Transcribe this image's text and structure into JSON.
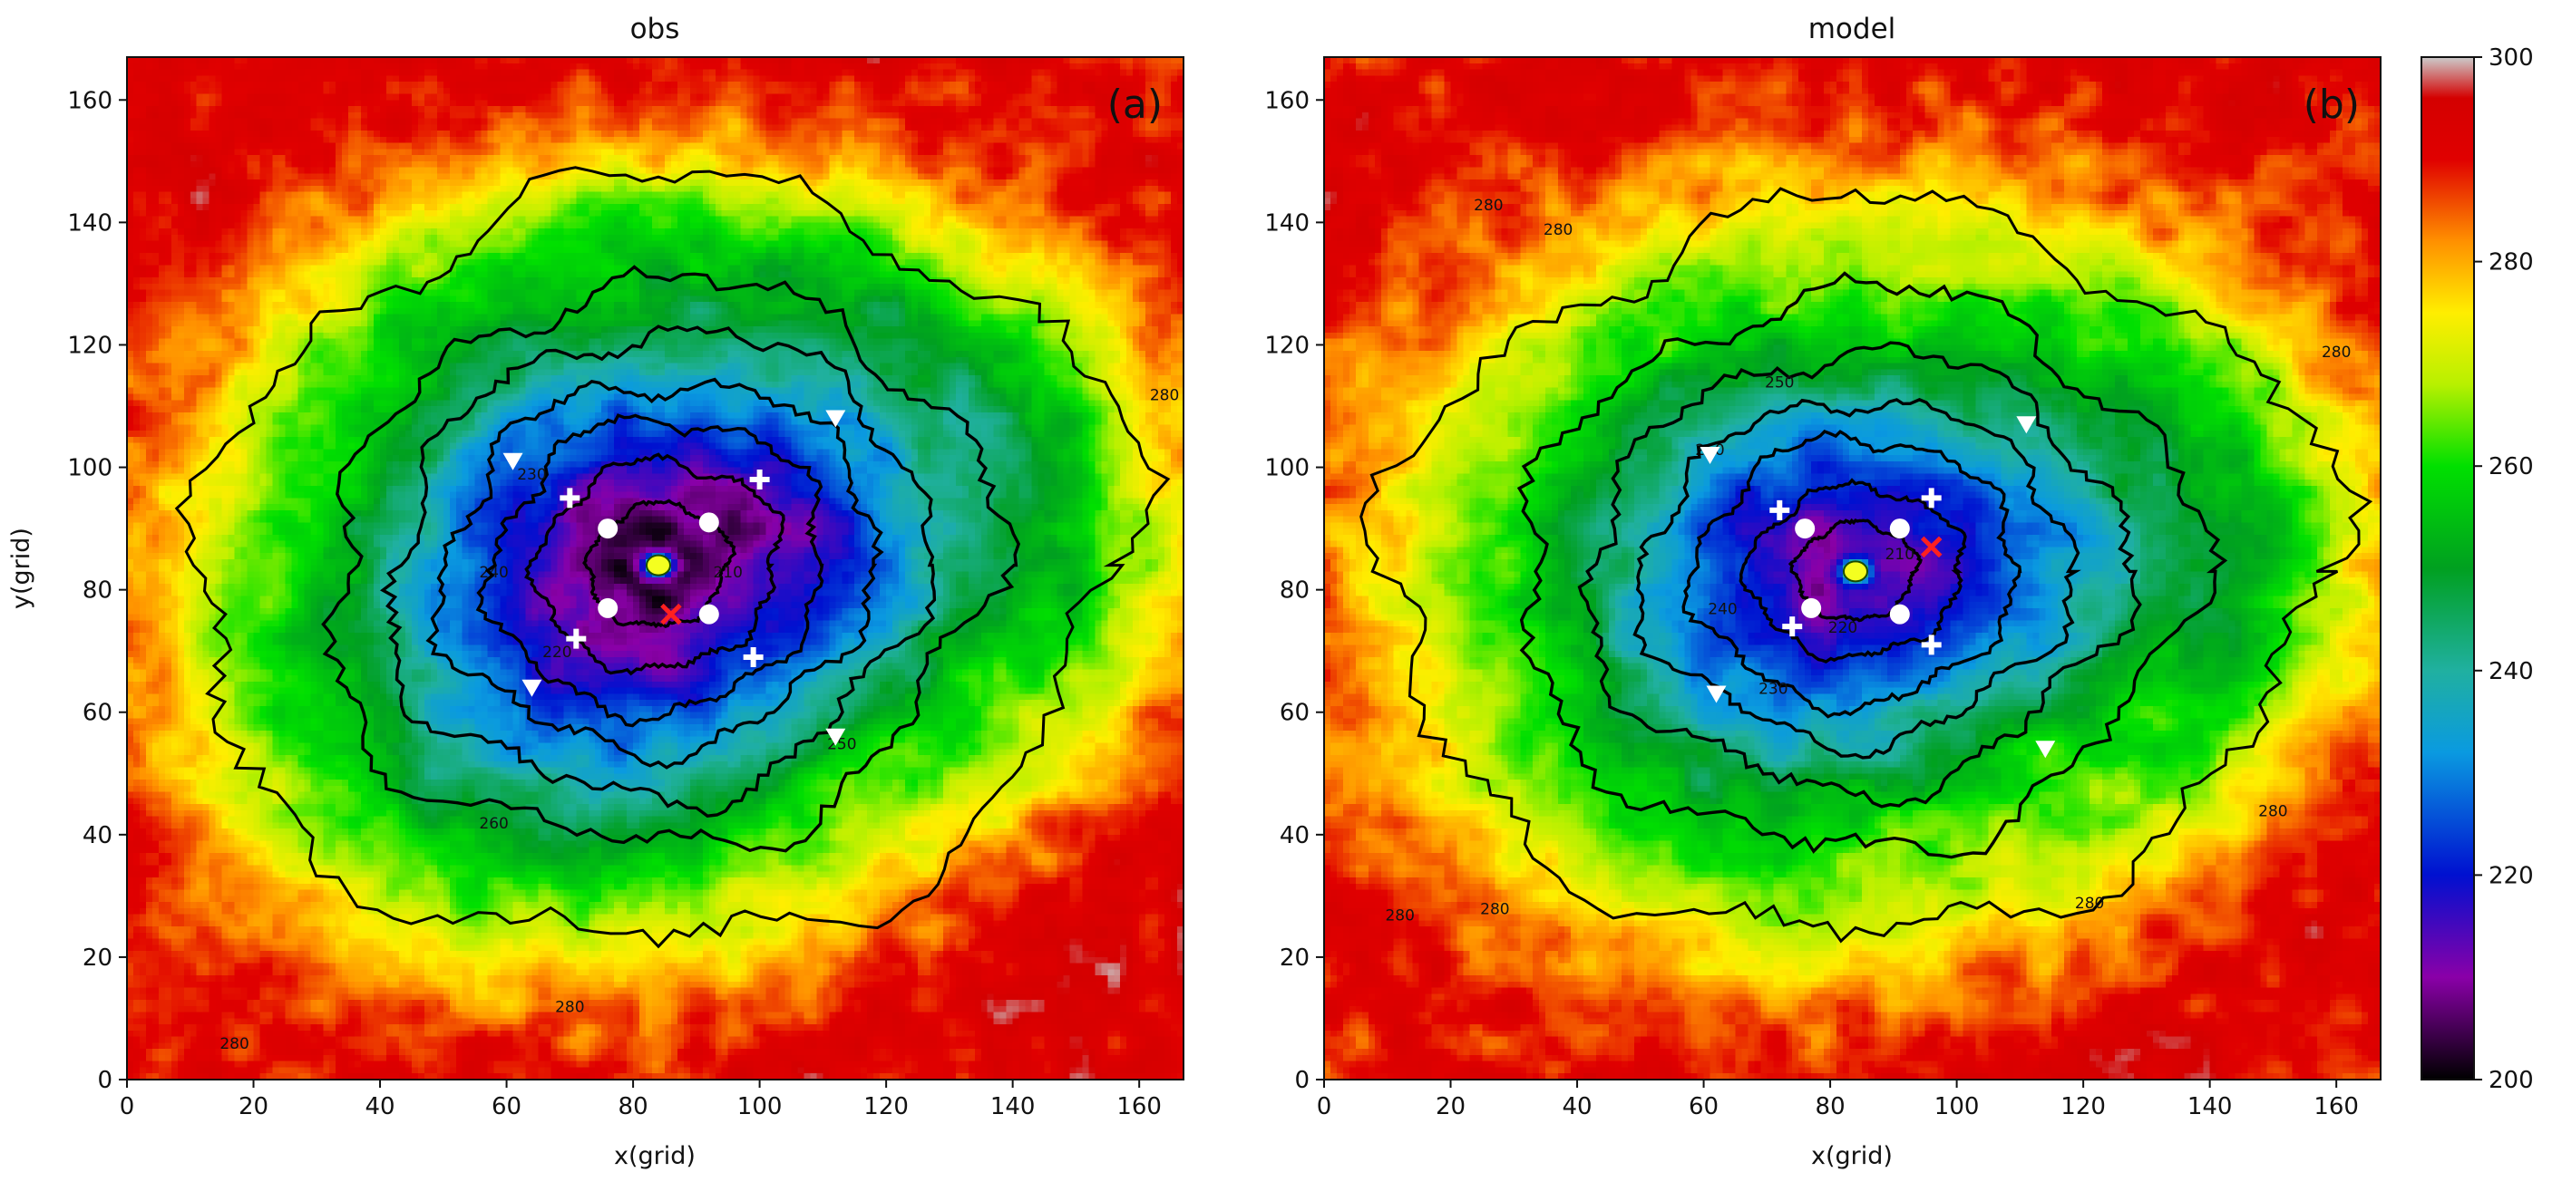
{
  "chart_data": [
    {
      "type": "heatmap",
      "title": "obs",
      "panel_label": "(a)",
      "xlabel": "x(grid)",
      "ylabel": "y(grid)",
      "xlim": [
        0,
        167
      ],
      "ylim": [
        0,
        167
      ],
      "xticks": [
        0,
        20,
        40,
        60,
        80,
        100,
        120,
        140,
        160
      ],
      "yticks": [
        0,
        20,
        40,
        60,
        80,
        100,
        120,
        140,
        160
      ],
      "field": {
        "center": [
          84,
          84
        ],
        "core_value": 205,
        "ambient_value": 288,
        "scale_radius": 48,
        "elong_x": 1.12,
        "elong_y": 0.92
      },
      "contour_levels": [
        {
          "value": 280,
          "rx": 73,
          "ry": 62,
          "labels": [
            [
              17,
              5
            ],
            [
              70,
              11
            ],
            [
              164,
              111
            ]
          ]
        },
        {
          "value": 260,
          "rx": 52,
          "ry": 46,
          "labels": [
            [
              58,
              41
            ]
          ]
        },
        {
          "value": 250,
          "rx": 42,
          "ry": 38,
          "labels": [
            [
              113,
              54
            ]
          ]
        },
        {
          "value": 240,
          "rx": 34,
          "ry": 30,
          "labels": [
            [
              58,
              82
            ]
          ]
        },
        {
          "value": 230,
          "rx": 26,
          "ry": 24,
          "labels": [
            [
              64,
              98
            ]
          ]
        },
        {
          "value": 220,
          "rx": 19,
          "ry": 17,
          "labels": [
            [
              68,
              69
            ]
          ]
        },
        {
          "value": 210,
          "rx": 11,
          "ry": 10,
          "labels": [
            [
              95,
              82
            ]
          ]
        }
      ],
      "markers": {
        "triangle": [
          [
            61,
            101
          ],
          [
            112,
            108
          ],
          [
            64,
            64
          ],
          [
            112,
            56
          ]
        ],
        "plus": [
          [
            70,
            95
          ],
          [
            100,
            98
          ],
          [
            71,
            72
          ],
          [
            99,
            69
          ]
        ],
        "circle": [
          [
            76,
            90
          ],
          [
            92,
            91
          ],
          [
            76,
            77
          ],
          [
            92,
            76
          ]
        ],
        "x": [
          [
            86,
            76
          ]
        ],
        "center": [
          [
            84,
            84
          ]
        ]
      }
    },
    {
      "type": "heatmap",
      "title": "model",
      "panel_label": "(b)",
      "xlabel": "x(grid)",
      "ylabel": "",
      "xlim": [
        0,
        167
      ],
      "ylim": [
        0,
        167
      ],
      "xticks": [
        0,
        20,
        40,
        60,
        80,
        100,
        120,
        140,
        160
      ],
      "yticks": [
        0,
        20,
        40,
        60,
        80,
        100,
        120,
        140,
        160
      ],
      "field": {
        "center": [
          84,
          83
        ],
        "core_value": 212,
        "ambient_value": 286,
        "scale_radius": 44,
        "elong_x": 1.1,
        "elong_y": 0.95
      },
      "contour_levels": [
        {
          "value": 280,
          "rx": 70,
          "ry": 60,
          "labels": [
            [
              37,
              138
            ],
            [
              26,
              142
            ],
            [
              160,
              118
            ],
            [
              150,
              43
            ],
            [
              121,
              28
            ],
            [
              27,
              27
            ],
            [
              12,
              26
            ]
          ]
        },
        {
          "value": 260,
          "rx": 50,
          "ry": 46,
          "labels": [
            [
              61,
              102
            ]
          ]
        },
        {
          "value": 250,
          "rx": 40,
          "ry": 36,
          "labels": [
            [
              72,
              113
            ]
          ]
        },
        {
          "value": 240,
          "rx": 32,
          "ry": 28,
          "labels": [
            [
              63,
              76
            ]
          ]
        },
        {
          "value": 230,
          "rx": 24,
          "ry": 22,
          "labels": [
            [
              71,
              63
            ]
          ]
        },
        {
          "value": 220,
          "rx": 16,
          "ry": 14,
          "labels": [
            [
              82,
              73
            ]
          ]
        },
        {
          "value": 210,
          "rx": 9,
          "ry": 8,
          "labels": [
            [
              91,
              85
            ]
          ]
        }
      ],
      "markers": {
        "triangle": [
          [
            61,
            102
          ],
          [
            111,
            107
          ],
          [
            62,
            63
          ],
          [
            114,
            54
          ]
        ],
        "plus": [
          [
            72,
            93
          ],
          [
            96,
            95
          ],
          [
            74,
            74
          ],
          [
            96,
            71
          ]
        ],
        "circle": [
          [
            76,
            90
          ],
          [
            91,
            90
          ],
          [
            77,
            77
          ],
          [
            91,
            76
          ]
        ],
        "x": [
          [
            96,
            87
          ]
        ],
        "center": [
          [
            84,
            83
          ]
        ]
      }
    }
  ],
  "colorbar": {
    "min": 200,
    "max": 300,
    "ticks": [
      200,
      220,
      240,
      260,
      280,
      300
    ],
    "stops": [
      {
        "v": 200,
        "color": "#000000"
      },
      {
        "v": 210,
        "color": "#8a00a8"
      },
      {
        "v": 220,
        "color": "#0010d0"
      },
      {
        "v": 232,
        "color": "#0a9ae0"
      },
      {
        "v": 240,
        "color": "#20b0a0"
      },
      {
        "v": 250,
        "color": "#00a020"
      },
      {
        "v": 260,
        "color": "#00e000"
      },
      {
        "v": 268,
        "color": "#b8f000"
      },
      {
        "v": 275,
        "color": "#ffee00"
      },
      {
        "v": 282,
        "color": "#ff9000"
      },
      {
        "v": 290,
        "color": "#e00000"
      },
      {
        "v": 296,
        "color": "#d40000"
      },
      {
        "v": 300,
        "color": "#cccccc"
      }
    ]
  }
}
